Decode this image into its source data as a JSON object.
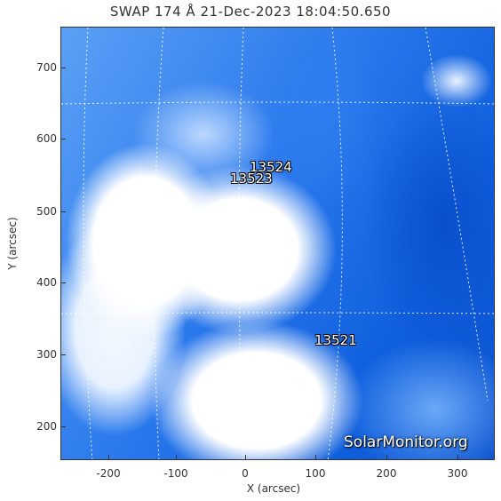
{
  "title": "SWAP 174 Å 21-Dec-2023 18:04:50.650",
  "axes": {
    "xlabel": "X (arcsec)",
    "ylabel": "Y (arcsec)",
    "xticks": [
      "-200",
      "-100",
      "0",
      "100",
      "200",
      "300"
    ],
    "yticks": [
      "700",
      "600",
      "500",
      "400",
      "300",
      "200"
    ]
  },
  "regions": {
    "r13524": "13524",
    "r13523": "13523",
    "r13521": "13521"
  },
  "watermark": "SolarMonitor.org",
  "colors": {
    "plasma_dark": "#0b52cf",
    "plasma_light": "#5aa0f5",
    "frame": "#333333"
  }
}
